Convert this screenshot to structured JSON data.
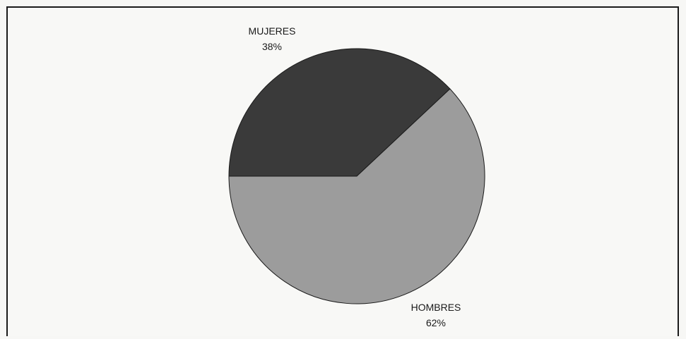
{
  "chart_data": {
    "type": "pie",
    "slices": [
      {
        "label": "MUJERES",
        "value": 38,
        "value_label": "38%",
        "color": "#3a3a3a"
      },
      {
        "label": "HOMBRES",
        "value": 62,
        "value_label": "62%",
        "color": "#9c9c9c"
      }
    ],
    "legend": "none",
    "edge_color": "#1a1a1a",
    "background": "#f8f8f6"
  }
}
